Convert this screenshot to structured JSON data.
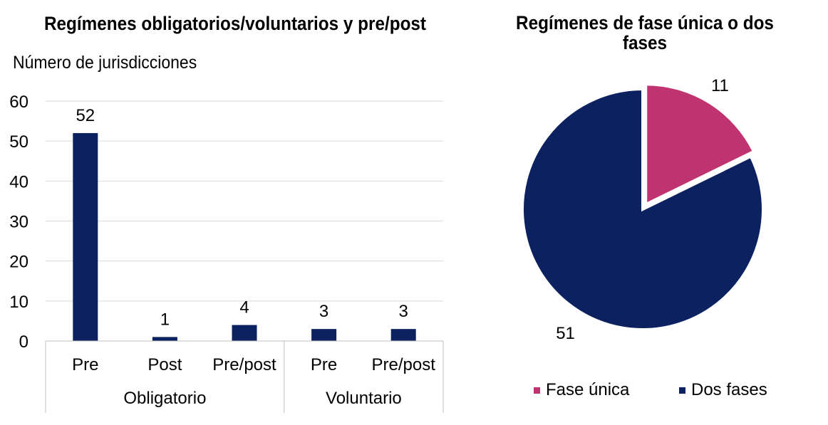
{
  "chart_data": [
    {
      "type": "bar",
      "title": "Regímenes obligatorios/voluntarios y pre/post",
      "ylabel": "Número de jurisdicciones",
      "ylim": [
        0,
        60
      ],
      "yticks": [
        "0",
        "10",
        "20",
        "30",
        "40",
        "50",
        "60"
      ],
      "grid": true,
      "categories": [
        "Pre",
        "Post",
        "Pre/post",
        "Pre",
        "Pre/post"
      ],
      "groups": [
        {
          "label": "Obligatorio",
          "size": 3
        },
        {
          "label": "Voluntario",
          "size": 2
        }
      ],
      "values": [
        52,
        1,
        4,
        3,
        3
      ],
      "data_labels": [
        "52",
        "1",
        "4",
        "3",
        "3"
      ],
      "color": "#0c2160"
    },
    {
      "type": "pie",
      "title": "Regímenes de fase única o dos fases",
      "slices": [
        {
          "label": "Fase única",
          "value": 11,
          "color": "#bf3470",
          "exploded": true
        },
        {
          "label": "Dos fases",
          "value": 51,
          "color": "#0c2160",
          "exploded": false
        }
      ],
      "legend_position": "bottom"
    }
  ]
}
